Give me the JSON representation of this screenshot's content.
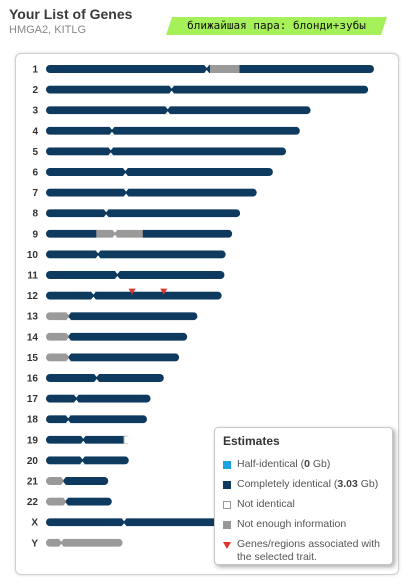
{
  "header": {
    "title": "Your List of Genes",
    "genes": "HMGA2, KITLG",
    "pair_tag": "ближайшая пара: блонди+зубы",
    "pair_tag_color": "#a6f05a"
  },
  "legend": {
    "title": "Estimates",
    "half_label": "Half-identical",
    "half_value": "0",
    "half_unit": "Gb",
    "full_label": "Completely identical",
    "full_value": "3.03",
    "full_unit": "Gb",
    "not_identical_label": "Not identical",
    "no_info_label": "Not enough information",
    "trait_label": "Genes/regions associated with the selected trait."
  },
  "colors": {
    "completely_identical": "#0d3a5e",
    "half_identical": "#1ba3e0",
    "not_enough_info": "#9a9a9a",
    "trait_marker": "#e0352b"
  },
  "chromosomes": [
    {
      "label": "1",
      "length": 247.2,
      "centromere": 0.49,
      "segments": [
        {
          "type": "full",
          "from": 0,
          "to": 0.5
        },
        {
          "type": "noinfo",
          "from": 0.5,
          "to": 0.59
        },
        {
          "type": "full",
          "from": 0.59,
          "to": 1
        }
      ]
    },
    {
      "label": "2",
      "length": 242.8,
      "centromere": 0.39,
      "segments": [
        {
          "type": "full",
          "from": 0,
          "to": 1
        }
      ]
    },
    {
      "label": "3",
      "length": 199.4,
      "centromere": 0.46,
      "segments": [
        {
          "type": "full",
          "from": 0,
          "to": 1
        }
      ]
    },
    {
      "label": "4",
      "length": 191.3,
      "centromere": 0.26,
      "segments": [
        {
          "type": "full",
          "from": 0,
          "to": 1
        }
      ]
    },
    {
      "label": "5",
      "length": 180.9,
      "centromere": 0.27,
      "segments": [
        {
          "type": "full",
          "from": 0,
          "to": 1
        }
      ]
    },
    {
      "label": "6",
      "length": 171.0,
      "centromere": 0.35,
      "segments": [
        {
          "type": "full",
          "from": 0,
          "to": 1
        }
      ]
    },
    {
      "label": "7",
      "length": 158.8,
      "centromere": 0.38,
      "segments": [
        {
          "type": "full",
          "from": 0,
          "to": 1
        }
      ]
    },
    {
      "label": "8",
      "length": 146.3,
      "centromere": 0.31,
      "segments": [
        {
          "type": "full",
          "from": 0,
          "to": 1
        }
      ]
    },
    {
      "label": "9",
      "length": 140.3,
      "centromere": 0.37,
      "segments": [
        {
          "type": "full",
          "from": 0,
          "to": 0.27
        },
        {
          "type": "noinfo",
          "from": 0.27,
          "to": 0.52
        },
        {
          "type": "full",
          "from": 0.52,
          "to": 1
        }
      ]
    },
    {
      "label": "10",
      "length": 135.4,
      "centromere": 0.29,
      "segments": [
        {
          "type": "full",
          "from": 0,
          "to": 1
        }
      ]
    },
    {
      "label": "11",
      "length": 134.5,
      "centromere": 0.4,
      "segments": [
        {
          "type": "full",
          "from": 0,
          "to": 1
        }
      ]
    },
    {
      "label": "12",
      "length": 132.4,
      "centromere": 0.27,
      "segments": [
        {
          "type": "full",
          "from": 0,
          "to": 1
        }
      ],
      "markers": [
        0.49,
        0.67
      ]
    },
    {
      "label": "13",
      "length": 114.1,
      "centromere": 0.15,
      "segments": [
        {
          "type": "noinfo",
          "from": 0,
          "to": 0.15
        },
        {
          "type": "full",
          "from": 0.15,
          "to": 1
        }
      ]
    },
    {
      "label": "14",
      "length": 106.4,
      "centromere": 0.16,
      "segments": [
        {
          "type": "noinfo",
          "from": 0,
          "to": 0.16
        },
        {
          "type": "full",
          "from": 0.16,
          "to": 1
        }
      ]
    },
    {
      "label": "15",
      "length": 100.3,
      "centromere": 0.17,
      "segments": [
        {
          "type": "noinfo",
          "from": 0,
          "to": 0.17
        },
        {
          "type": "full",
          "from": 0.17,
          "to": 1
        }
      ]
    },
    {
      "label": "16",
      "length": 88.8,
      "centromere": 0.43,
      "segments": [
        {
          "type": "full",
          "from": 0,
          "to": 1
        }
      ]
    },
    {
      "label": "17",
      "length": 78.8,
      "centromere": 0.29,
      "segments": [
        {
          "type": "full",
          "from": 0,
          "to": 1
        }
      ]
    },
    {
      "label": "18",
      "length": 76.1,
      "centromere": 0.22,
      "segments": [
        {
          "type": "full",
          "from": 0,
          "to": 1
        }
      ]
    },
    {
      "label": "19",
      "length": 63.8,
      "centromere": 0.44,
      "segments": [
        {
          "type": "full",
          "from": 0,
          "to": 0.92
        },
        {
          "type": "none",
          "from": 0.92,
          "to": 1
        }
      ]
    },
    {
      "label": "20",
      "length": 62.4,
      "centromere": 0.44,
      "segments": [
        {
          "type": "full",
          "from": 0,
          "to": 1
        }
      ]
    },
    {
      "label": "21",
      "length": 46.9,
      "centromere": 0.28,
      "segments": [
        {
          "type": "noinfo",
          "from": 0,
          "to": 0.28
        },
        {
          "type": "full",
          "from": 0.28,
          "to": 1
        }
      ]
    },
    {
      "label": "22",
      "length": 49.6,
      "centromere": 0.3,
      "segments": [
        {
          "type": "noinfo",
          "from": 0,
          "to": 0.3
        },
        {
          "type": "full",
          "from": 0.3,
          "to": 1
        }
      ]
    },
    {
      "label": "X",
      "length": 154.9,
      "centromere": 0.38,
      "segments": [
        {
          "type": "full",
          "from": 0,
          "to": 1
        }
      ]
    },
    {
      "label": "Y",
      "length": 57.7,
      "centromere": 0.2,
      "segments": [
        {
          "type": "noinfo",
          "from": 0,
          "to": 1
        }
      ]
    }
  ]
}
